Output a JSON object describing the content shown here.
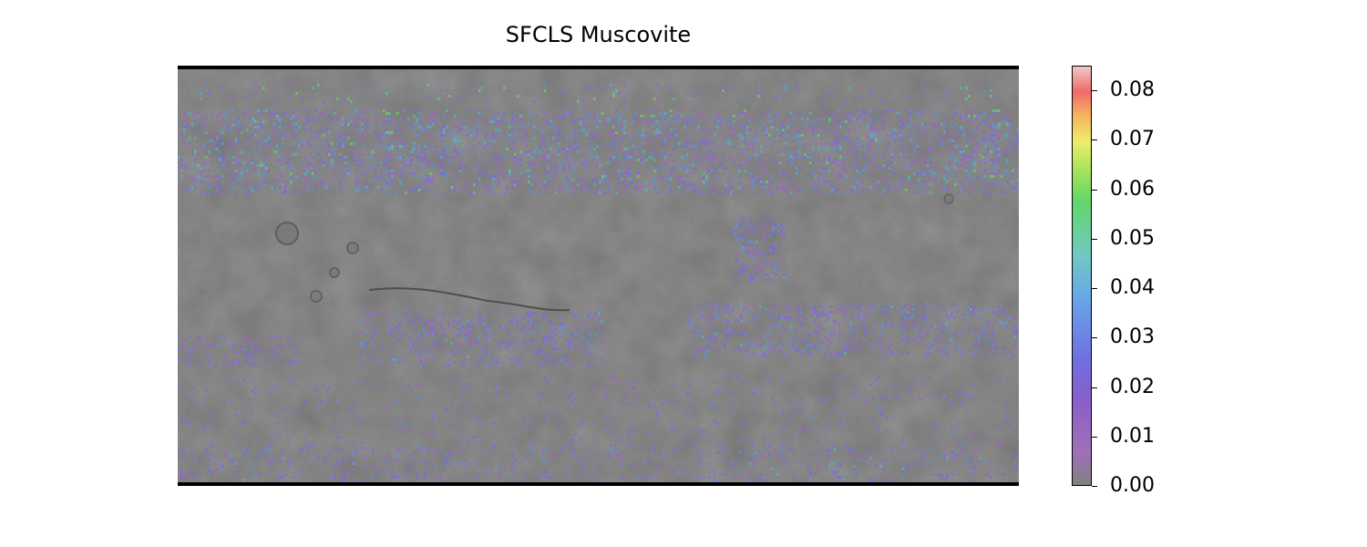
{
  "title": "SFCLS Muscovite",
  "colorbar": {
    "ticks": [
      "0.00",
      "0.01",
      "0.02",
      "0.03",
      "0.04",
      "0.05",
      "0.06",
      "0.07",
      "0.08"
    ],
    "min": 0.0,
    "max": 0.085,
    "colors": [
      "#808080",
      "#a070b8",
      "#8a5fc8",
      "#6f6fe0",
      "#67a8e8",
      "#70c9c0",
      "#63d66a",
      "#eded6a",
      "#f5b860",
      "#f06a6a",
      "#f0c8c8"
    ]
  },
  "map": {
    "background_color": "#6f6f6f",
    "overlay_colors": [
      "#9b63c7",
      "#7a6ae0",
      "#5f8fe0",
      "#4fb4c8",
      "#63d66a"
    ]
  }
}
